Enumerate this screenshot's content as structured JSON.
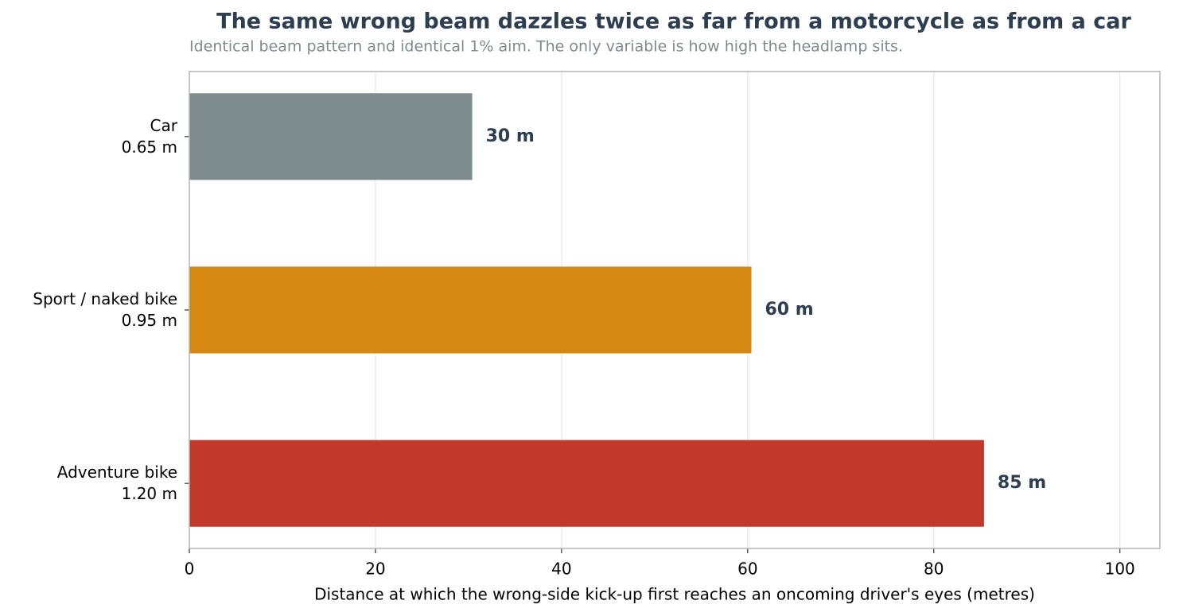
{
  "chart_data": {
    "type": "barh",
    "title": "The same wrong beam dazzles twice as far from a motorcycle as from a car",
    "subtitle": "Identical beam pattern and identical 1% aim. The only variable is how high the headlamp sits.",
    "x_label": "Distance at which the wrong-side kick-up first reaches an oncoming driver's eyes (metres)",
    "categories": [
      "Car\n0.65 m",
      "Sport / naked bike\n0.95 m",
      "Adventure bike\n1.20 m"
    ],
    "values": [
      30.4,
      60.4,
      85.4
    ],
    "value_labels": [
      "30 m",
      "60 m",
      "85 m"
    ],
    "colors": [
      "#7f8c8d",
      "#d68910",
      "#c0392b"
    ],
    "xlim": [
      0,
      104.3
    ],
    "xticks": [
      0,
      20,
      40,
      60,
      80,
      100
    ],
    "grid": true
  }
}
